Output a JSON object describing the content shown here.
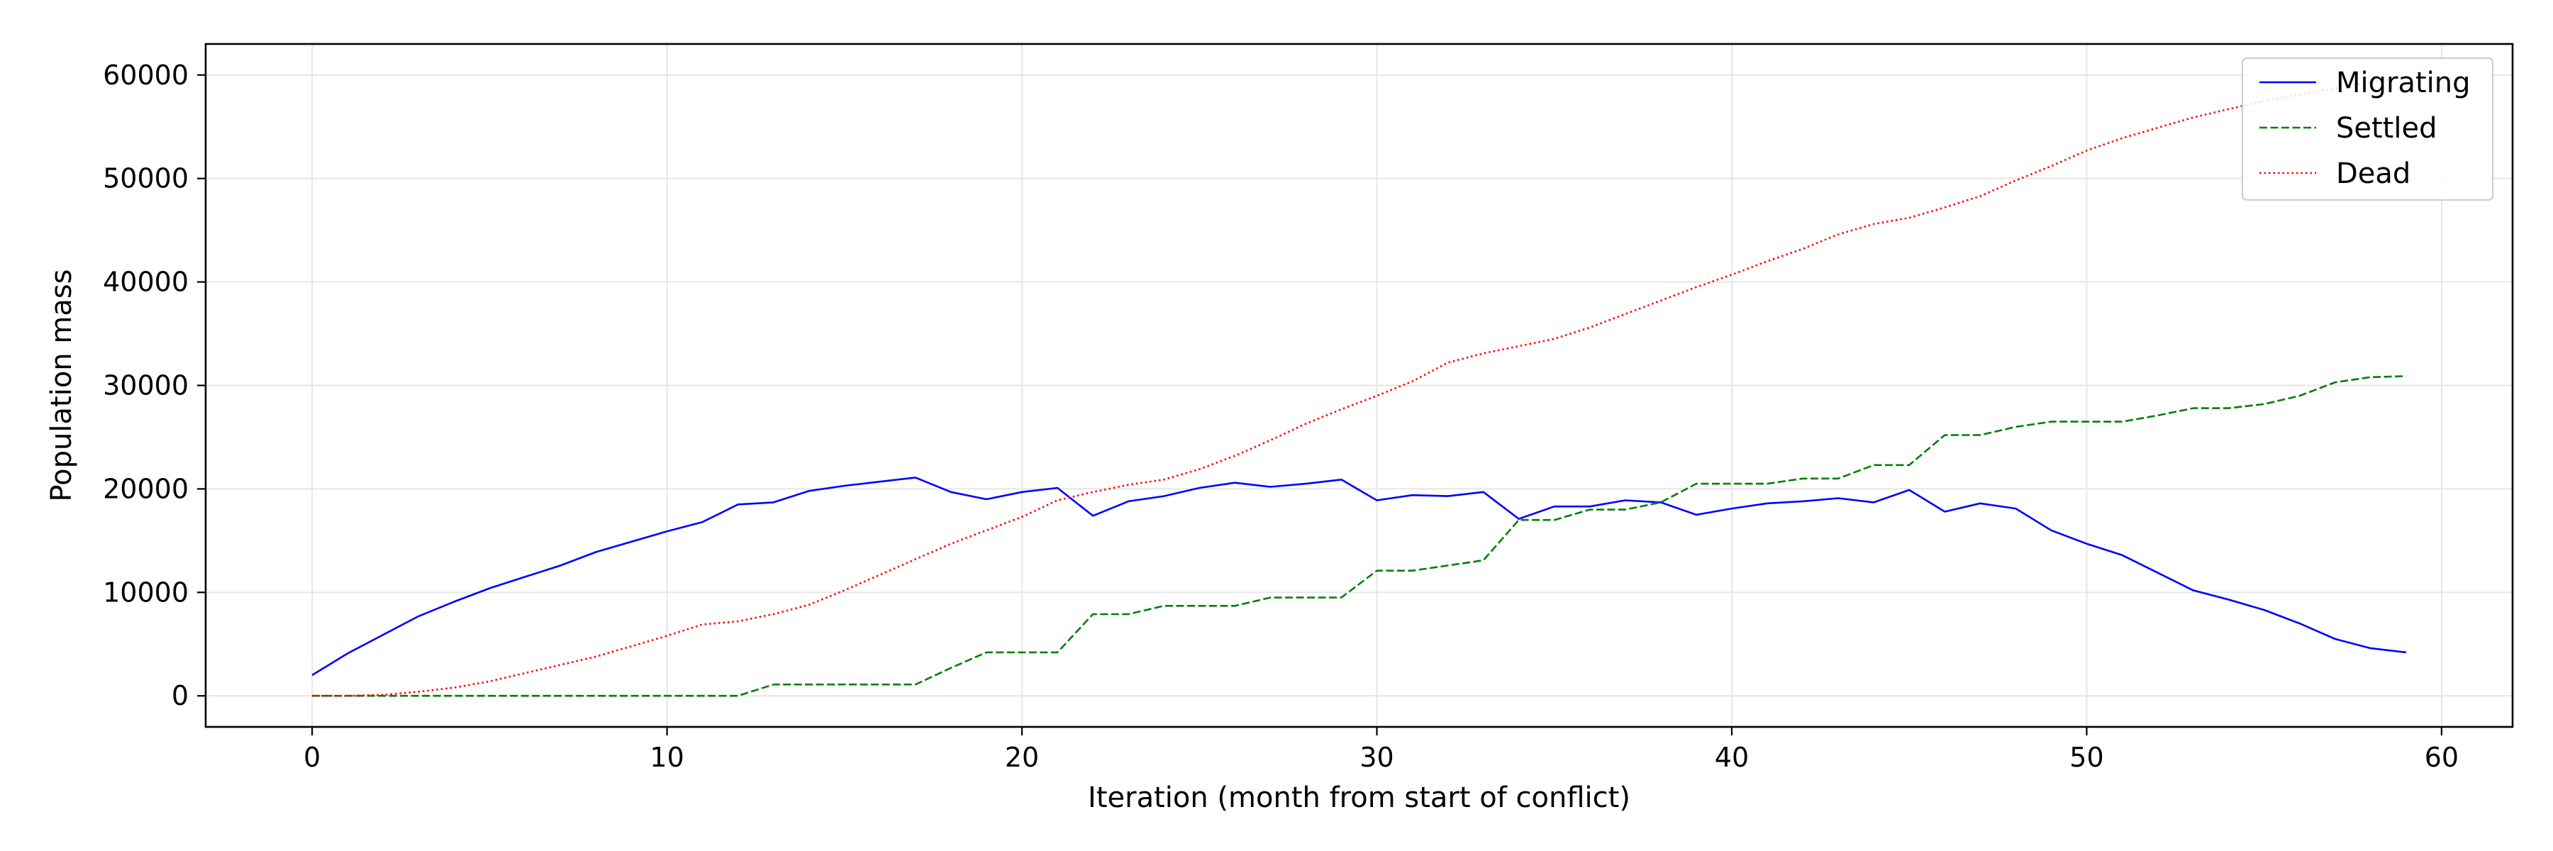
{
  "chart_data": {
    "type": "line",
    "title": "",
    "xlabel": "Iteration (month from start of conflict)",
    "ylabel": "Population mass",
    "xlim": [
      -3,
      62
    ],
    "ylim": [
      -3000,
      63000
    ],
    "xticks": [
      0,
      10,
      20,
      30,
      40,
      50,
      60
    ],
    "yticks": [
      0,
      10000,
      20000,
      30000,
      40000,
      50000,
      60000
    ],
    "grid": true,
    "legend_position": "top-right",
    "x": [
      0,
      1,
      2,
      3,
      4,
      5,
      6,
      7,
      8,
      9,
      10,
      11,
      12,
      13,
      14,
      15,
      16,
      17,
      18,
      19,
      20,
      21,
      22,
      23,
      24,
      25,
      26,
      27,
      28,
      29,
      30,
      31,
      32,
      33,
      34,
      35,
      36,
      37,
      38,
      39,
      40,
      41,
      42,
      43,
      44,
      45,
      46,
      47,
      48,
      49,
      50,
      51,
      52,
      53,
      54,
      55,
      56,
      57,
      58,
      59
    ],
    "series": [
      {
        "name": "Migrating",
        "color": "#0000ff",
        "dash": "solid",
        "values": [
          2000,
          4100,
          5900,
          7700,
          9100,
          10400,
          11500,
          12600,
          13900,
          14900,
          15900,
          16800,
          18500,
          18700,
          19800,
          20300,
          20700,
          21100,
          19700,
          19000,
          19700,
          20100,
          17400,
          18800,
          19300,
          20100,
          20600,
          20200,
          20500,
          20900,
          18900,
          19400,
          19300,
          19700,
          17100,
          18300,
          18300,
          18900,
          18700,
          17500,
          18100,
          18600,
          18800,
          19100,
          18700,
          19900,
          17800,
          18600,
          18100,
          16000,
          14700,
          13600,
          11900,
          10200,
          9300,
          8300,
          7000,
          5500,
          4600,
          4200
        ]
      },
      {
        "name": "Settled",
        "color": "#008000",
        "dash": "dashed",
        "values": [
          0,
          0,
          0,
          0,
          0,
          0,
          0,
          0,
          0,
          0,
          0,
          0,
          0,
          1100,
          1100,
          1100,
          1100,
          1100,
          2700,
          4200,
          4200,
          4200,
          7900,
          7900,
          8700,
          8700,
          8700,
          9500,
          9500,
          9500,
          12100,
          12100,
          12600,
          13100,
          17000,
          17000,
          18000,
          18000,
          18700,
          20500,
          20500,
          20500,
          21000,
          21000,
          22300,
          22300,
          25200,
          25200,
          26000,
          26500,
          26500,
          26500,
          27100,
          27800,
          27800,
          28200,
          29000,
          30300,
          30800,
          30900
        ]
      },
      {
        "name": "Dead",
        "color": "#ff0000",
        "dash": "dotted",
        "values": [
          0,
          0,
          100,
          400,
          800,
          1400,
          2200,
          3000,
          3800,
          4800,
          5800,
          6900,
          7200,
          7900,
          8800,
          10200,
          11700,
          13200,
          14700,
          16000,
          17300,
          18900,
          19700,
          20400,
          20900,
          21900,
          23200,
          24700,
          26300,
          27700,
          29000,
          30400,
          32200,
          33100,
          33800,
          34500,
          35600,
          36900,
          38200,
          39500,
          40700,
          42000,
          43200,
          44600,
          45600,
          46200,
          47200,
          48300,
          49800,
          51200,
          52700,
          53900,
          54900,
          55900,
          56700,
          57500,
          58100,
          58700,
          59300,
          59800
        ]
      }
    ]
  }
}
